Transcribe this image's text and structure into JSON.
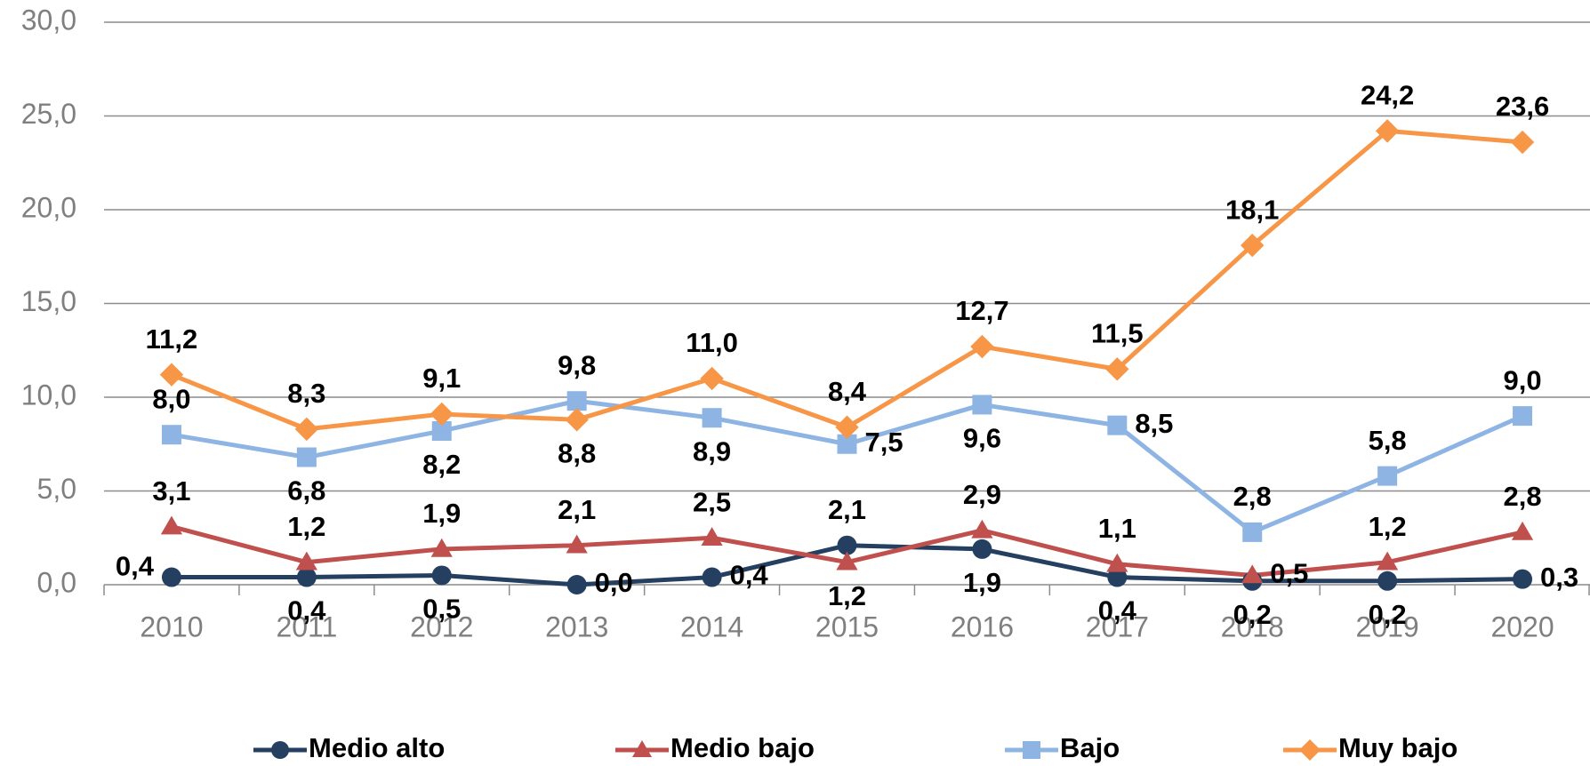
{
  "chart_data": {
    "type": "line",
    "categories": [
      "2010",
      "2011",
      "2012",
      "2013",
      "2014",
      "2015",
      "2016",
      "2017",
      "2018",
      "2019",
      "2020"
    ],
    "series": [
      {
        "name": "Medio alto",
        "color": "#243f60",
        "marker": "circle",
        "values": [
          0.4,
          0.4,
          0.5,
          0.0,
          0.4,
          2.1,
          1.9,
          0.4,
          0.2,
          0.2,
          0.3
        ],
        "value_labels": [
          "0,4",
          "0,4",
          "0,5",
          "0,0",
          "0,4",
          "2,1",
          "1,9",
          "0,4",
          "0,2",
          "0,2",
          "0,3"
        ]
      },
      {
        "name": "Medio bajo",
        "color": "#c0504d",
        "marker": "triangle",
        "values": [
          3.1,
          1.2,
          1.9,
          2.1,
          2.5,
          1.2,
          2.9,
          1.1,
          0.5,
          1.2,
          2.8
        ],
        "value_labels": [
          "3,1",
          "1,2",
          "1,9",
          "2,1",
          "2,5",
          "1,2",
          "2,9",
          "1,1",
          "0,5",
          "1,2",
          "2,8"
        ]
      },
      {
        "name": "Bajo",
        "color": "#8eb4e3",
        "marker": "square",
        "values": [
          8.0,
          6.8,
          8.2,
          9.8,
          8.9,
          7.5,
          9.6,
          8.5,
          2.8,
          5.8,
          9.0
        ],
        "value_labels": [
          "8,0",
          "6,8",
          "8,2",
          "9,8",
          "8,9",
          "7,5",
          "9,6",
          "8,5",
          "2,8",
          "5,8",
          "9,0"
        ]
      },
      {
        "name": "Muy bajo",
        "color": "#f79646",
        "marker": "diamond",
        "values": [
          11.2,
          8.3,
          9.1,
          8.8,
          11.0,
          8.4,
          12.7,
          11.5,
          18.1,
          24.2,
          23.6
        ],
        "value_labels": [
          "11,2",
          "8,3",
          "9,1",
          "8,8",
          "11,0",
          "8,4",
          "12,7",
          "11,5",
          "18,1",
          "24,2",
          "23,6"
        ]
      }
    ],
    "ylim": [
      0,
      30
    ],
    "yticks": [
      {
        "value": 0,
        "label": "0,0"
      },
      {
        "value": 5,
        "label": "5,0"
      },
      {
        "value": 10,
        "label": "10,0"
      },
      {
        "value": 15,
        "label": "15,0"
      },
      {
        "value": 20,
        "label": "20,0"
      },
      {
        "value": 25,
        "label": "25,0"
      },
      {
        "value": 30,
        "label": "30,0"
      }
    ],
    "grid": true,
    "legend": "bottom"
  }
}
